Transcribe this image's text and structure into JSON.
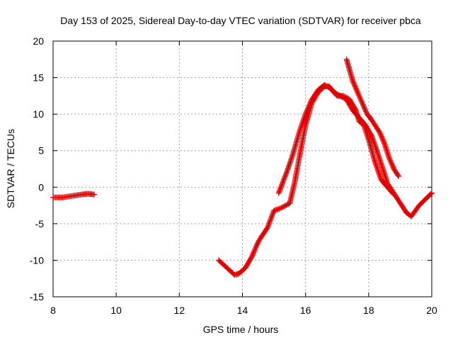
{
  "chart_data": {
    "type": "scatter",
    "title": "Day 153 of 2025, Sidereal Day-to-day VTEC variation (SDTVAR) for receiver pbca",
    "xlabel": "GPS time / hours",
    "ylabel": "SDTVAR / TECUs",
    "xlim": [
      8,
      20
    ],
    "ylim": [
      -15,
      20
    ],
    "xticks": [
      8,
      10,
      12,
      14,
      16,
      18,
      20
    ],
    "yticks": [
      -15,
      -10,
      -5,
      0,
      5,
      10,
      15,
      20
    ],
    "xtick_labels": [
      "8",
      "10",
      "12",
      "14",
      "16",
      "18",
      "20"
    ],
    "ytick_labels": [
      "-15",
      "-10",
      "-5",
      "0",
      "5",
      "10",
      "15",
      "20"
    ],
    "grid": true,
    "marker": "plus",
    "color": "#e00000",
    "series": [
      {
        "name": "track-1",
        "x": [
          8.0,
          8.3,
          8.6,
          8.9,
          9.1,
          9.3
        ],
        "y": [
          -1.4,
          -1.4,
          -1.2,
          -1.0,
          -0.9,
          -1.0
        ]
      },
      {
        "name": "track-2",
        "x": [
          13.25,
          13.5,
          13.75,
          13.9,
          14.1,
          14.3,
          14.5,
          14.6,
          14.8,
          15.0,
          15.2,
          15.5,
          15.65,
          15.8,
          16.0,
          16.2,
          16.4,
          16.6,
          16.75,
          16.9,
          17.1,
          17.3,
          17.5,
          17.7,
          17.9,
          18.1,
          18.3,
          18.6,
          18.9,
          19.2,
          19.35,
          19.6,
          20.0
        ],
        "y": [
          -10.0,
          -11.0,
          -12.0,
          -11.8,
          -11.0,
          -9.5,
          -7.5,
          -6.8,
          -5.5,
          -3.2,
          -2.9,
          -2.2,
          0.5,
          4.0,
          8.5,
          11.5,
          13.0,
          13.8,
          13.8,
          13.0,
          12.5,
          12.0,
          10.5,
          9.5,
          8.5,
          7.0,
          4.5,
          0.5,
          -1.5,
          -3.5,
          -4.0,
          -2.5,
          -0.8
        ]
      },
      {
        "name": "track-3",
        "x": [
          15.15,
          15.4,
          15.6,
          15.8,
          16.0,
          16.2,
          16.4,
          16.6,
          16.8,
          17.0,
          17.2,
          17.4,
          17.6,
          17.7,
          17.85,
          18.0,
          18.2,
          18.4,
          18.6,
          18.8
        ],
        "y": [
          -0.8,
          2.0,
          4.5,
          7.5,
          10.0,
          12.0,
          13.3,
          14.0,
          13.5,
          12.5,
          12.5,
          12.0,
          10.5,
          9.0,
          8.5,
          6.5,
          3.5,
          1.0,
          0.0,
          -1.0
        ]
      },
      {
        "name": "track-4",
        "x": [
          17.3,
          17.4,
          17.5,
          17.65,
          17.8,
          17.95,
          18.05,
          18.2,
          18.35,
          18.5,
          18.65,
          18.8,
          18.95
        ],
        "y": [
          17.5,
          16.0,
          14.5,
          13.0,
          11.5,
          10.0,
          9.5,
          8.5,
          7.5,
          6.0,
          4.0,
          2.5,
          1.5
        ]
      }
    ]
  }
}
